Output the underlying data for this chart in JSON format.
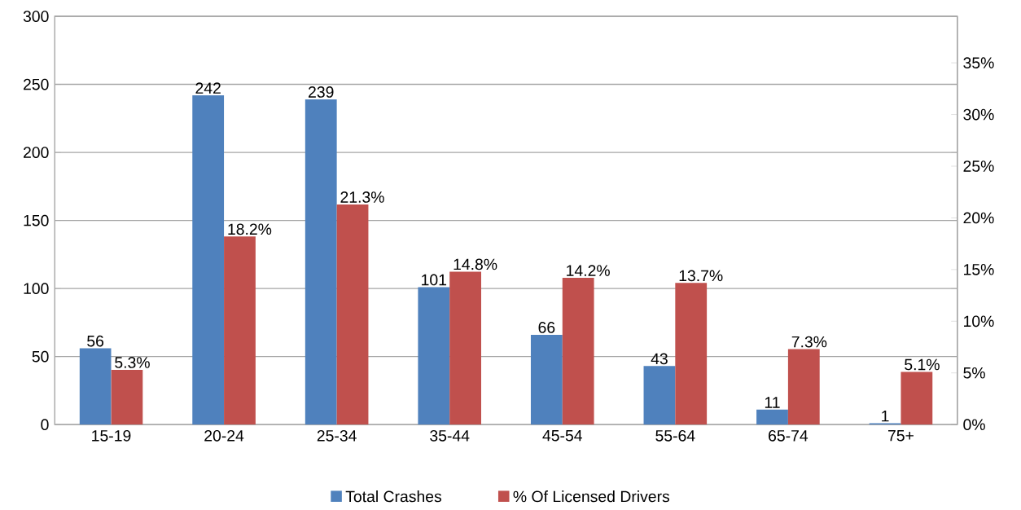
{
  "chart_data": {
    "type": "bar",
    "categories": [
      "15-19",
      "20-24",
      "25-34",
      "35-44",
      "45-54",
      "55-64",
      "65-74",
      "75+"
    ],
    "series": [
      {
        "name": "Total Crashes",
        "color": "#4f81bd",
        "values": [
          56,
          242,
          239,
          101,
          66,
          43,
          11,
          1
        ],
        "value_labels": [
          "56",
          "242",
          "239",
          "101",
          "66",
          "43",
          "11",
          "1"
        ]
      },
      {
        "name": "% Of Licensed Drivers",
        "color": "#c0504d",
        "axis": "y2",
        "values": [
          5.3,
          18.2,
          21.3,
          14.8,
          14.2,
          13.7,
          7.3,
          5.1
        ],
        "value_labels": [
          "5.3%",
          "18.2%",
          "21.3%",
          "14.8%",
          "14.2%",
          "13.7%",
          "7.3%",
          "5.1%"
        ]
      }
    ],
    "ylim": [
      0,
      300
    ],
    "yticks": [
      0,
      50,
      100,
      150,
      200,
      250,
      300
    ],
    "y2lim": [
      0,
      39.5
    ],
    "y2ticks": [
      {
        "value": 0,
        "label": "0%"
      },
      {
        "value": 5,
        "label": "5%"
      },
      {
        "value": 10,
        "label": "10%"
      },
      {
        "value": 15,
        "label": "15%"
      },
      {
        "value": 20,
        "label": "20%"
      },
      {
        "value": 25,
        "label": "25%"
      },
      {
        "value": 30,
        "label": "30%"
      },
      {
        "value": 35,
        "label": "35%"
      }
    ],
    "grid": "y",
    "legend": "bottom"
  }
}
